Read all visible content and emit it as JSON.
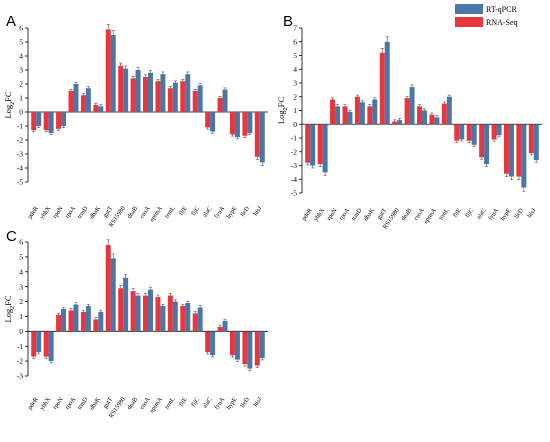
{
  "figure": {
    "legend": [
      {
        "name": "RT-qPCR",
        "color": "#4a76a8"
      },
      {
        "name": "RNA-Seq",
        "color": "#e8363f"
      }
    ]
  },
  "chart_data": [
    {
      "panel": "A",
      "type": "bar",
      "ylabel_base": "Log",
      "ylabel_sub": "2",
      "ylabel_tail": "FC",
      "ylim": [
        -5,
        6
      ],
      "yticks": [
        -5,
        -4,
        -3,
        -2,
        -1,
        0,
        1,
        2,
        3,
        4,
        5,
        6
      ],
      "categories": [
        "pdeR",
        "yhhX",
        "rpoN",
        "rpoA",
        "trmD",
        "dbaK",
        "gutT",
        "RS15980",
        "dnaB",
        "cusA",
        "eptmA",
        "trmL",
        "fliE",
        "fljC",
        "alaC",
        "fyuA",
        "hypE",
        "lieD",
        "hisJ"
      ],
      "series": [
        {
          "name": "RNA-Seq",
          "values": [
            -1.3,
            -1.3,
            -1.2,
            1.5,
            1.2,
            0.5,
            5.9,
            3.3,
            2.4,
            2.5,
            2.2,
            1.7,
            2.2,
            1.5,
            -1.1,
            1.0,
            -1.6,
            -1.7,
            -3.2
          ]
        },
        {
          "name": "RT-qPCR",
          "values": [
            -1.0,
            -1.5,
            -1.0,
            2.0,
            1.7,
            0.4,
            5.5,
            3.1,
            3.0,
            2.8,
            2.7,
            2.1,
            2.7,
            1.9,
            -1.4,
            1.6,
            -1.8,
            -1.5,
            -3.6
          ]
        }
      ]
    },
    {
      "panel": "B",
      "type": "bar",
      "ylabel_base": "Log",
      "ylabel_sub": "2",
      "ylabel_tail": "FC",
      "ylim": [
        -5,
        7
      ],
      "yticks": [
        -5,
        -4,
        -3,
        -2,
        -1,
        0,
        1,
        2,
        3,
        4,
        5,
        6,
        7
      ],
      "categories": [
        "pdeR",
        "yhhX",
        "rpoN",
        "rpoA",
        "trmD",
        "dbaK",
        "gutT",
        "RS15980",
        "dnaB",
        "cusA",
        "eptmA",
        "trmL",
        "fliE",
        "fljC",
        "alaC",
        "fyuA",
        "hypE",
        "lieD",
        "hisJ"
      ],
      "series": [
        {
          "name": "RNA-Seq",
          "values": [
            -2.8,
            -2.9,
            1.8,
            1.3,
            2.0,
            1.3,
            5.2,
            0.2,
            1.9,
            1.3,
            0.7,
            1.5,
            -1.2,
            -1.2,
            -2.4,
            -1.1,
            -3.6,
            -3.8,
            -2.1
          ]
        },
        {
          "name": "RT-qPCR",
          "values": [
            -3.0,
            -3.5,
            1.3,
            0.9,
            1.6,
            1.8,
            6.0,
            0.3,
            2.7,
            1.0,
            0.5,
            2.0,
            -1.1,
            -1.5,
            -2.9,
            -0.8,
            -3.8,
            -4.6,
            -2.6
          ]
        }
      ]
    },
    {
      "panel": "C",
      "type": "bar",
      "ylabel_base": "Log",
      "ylabel_sub": "2",
      "ylabel_tail": "FC",
      "ylim": [
        -3,
        6
      ],
      "yticks": [
        -3,
        -2,
        -1,
        0,
        1,
        2,
        3,
        4,
        5,
        6
      ],
      "categories": [
        "pdeR",
        "yhhX",
        "rpoN",
        "rpoA",
        "trmD",
        "dbaK",
        "gutT",
        "RS15980",
        "dnaB",
        "cusA",
        "eptmA",
        "trmL",
        "fliE",
        "fljC",
        "alaC",
        "fyuA",
        "hypE",
        "lieD",
        "hisJ"
      ],
      "series": [
        {
          "name": "RNA-Seq",
          "values": [
            -1.7,
            -1.7,
            1.1,
            1.4,
            1.3,
            0.8,
            5.8,
            2.9,
            2.7,
            2.4,
            2.3,
            2.4,
            1.7,
            1.2,
            -1.4,
            0.3,
            -1.6,
            -2.2,
            -2.3
          ]
        },
        {
          "name": "RT-qPCR",
          "values": [
            -1.4,
            -2.0,
            1.5,
            1.8,
            1.7,
            1.3,
            4.9,
            3.6,
            2.4,
            2.8,
            1.7,
            2.0,
            1.9,
            1.6,
            -1.6,
            0.7,
            -1.9,
            -2.5,
            -1.8
          ]
        }
      ]
    }
  ]
}
